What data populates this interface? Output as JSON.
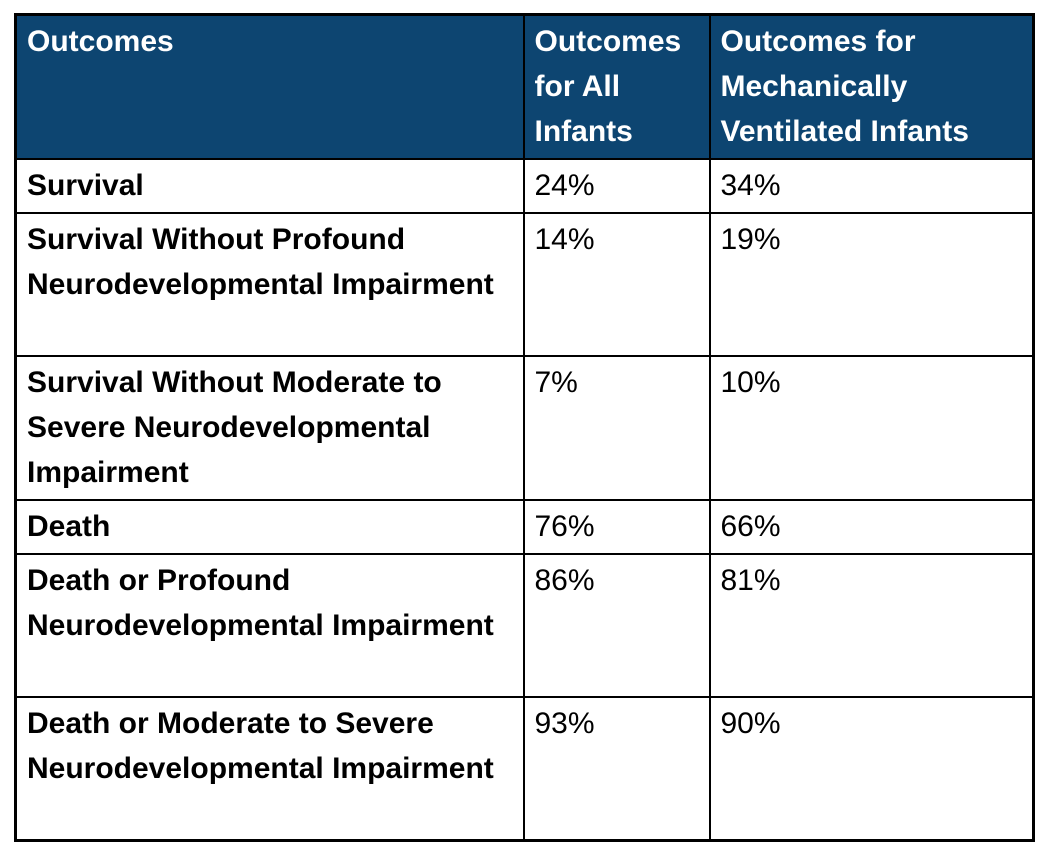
{
  "table": {
    "columns": [
      {
        "label": "Outcomes"
      },
      {
        "label": "Outcomes for All Infants"
      },
      {
        "label": "Outcomes for Mechanically Ventilated Infants"
      }
    ],
    "rows": [
      {
        "label": "Survival",
        "all_infants": "24%",
        "ventilated": "34%"
      },
      {
        "label": "Survival Without Profound Neurodevelopmental Impairment",
        "all_infants": "14%",
        "ventilated": "19%"
      },
      {
        "label": "Survival Without Moderate to Severe Neurodevelopmental Impairment",
        "all_infants": "7%",
        "ventilated": "10%"
      },
      {
        "label": "Death",
        "all_infants": "76%",
        "ventilated": "66%"
      },
      {
        "label": "Death or Profound Neurodevelopmental Impairment",
        "all_infants": "86%",
        "ventilated": "81%"
      },
      {
        "label": "Death or Moderate to Severe Neurodevelopmental Impairment",
        "all_infants": "93%",
        "ventilated": "90%"
      }
    ],
    "colors": {
      "header_bg": "#0D4571",
      "header_text": "#FFFFFF",
      "border": "#000000",
      "body_text": "#000000",
      "body_bg": "#FFFFFF"
    }
  },
  "chart_data": {
    "type": "table",
    "title": "",
    "categories": [
      "Survival",
      "Survival Without Profound Neurodevelopmental Impairment",
      "Survival Without Moderate to Severe Neurodevelopmental Impairment",
      "Death",
      "Death or Profound Neurodevelopmental Impairment",
      "Death or Moderate to Severe Neurodevelopmental Impairment"
    ],
    "series": [
      {
        "name": "Outcomes for All Infants",
        "values": [
          24,
          14,
          7,
          76,
          86,
          93
        ],
        "unit": "%"
      },
      {
        "name": "Outcomes for Mechanically Ventilated Infants",
        "values": [
          34,
          19,
          10,
          66,
          81,
          90
        ],
        "unit": "%"
      }
    ]
  }
}
